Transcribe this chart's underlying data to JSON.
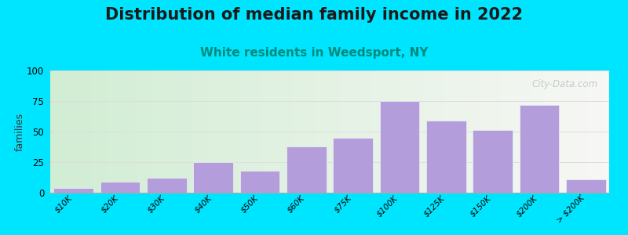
{
  "title": "Distribution of median family income in 2022",
  "subtitle": "White residents in Weedsport, NY",
  "ylabel": "families",
  "categories": [
    "$10K",
    "$20K",
    "$30K",
    "$40K",
    "$50K",
    "$60K",
    "$75K",
    "$100K",
    "$125K",
    "$150K",
    "$200K",
    "> $200K"
  ],
  "values": [
    4,
    9,
    12,
    25,
    18,
    38,
    45,
    75,
    59,
    51,
    72,
    11
  ],
  "bar_color": "#b39ddb",
  "bar_edge_color": "#e8e8f0",
  "background_outer": "#00e5ff",
  "ylim": [
    0,
    100
  ],
  "yticks": [
    0,
    25,
    50,
    75,
    100
  ],
  "title_fontsize": 15,
  "subtitle_fontsize": 11,
  "subtitle_color": "#00897b",
  "ylabel_fontsize": 9,
  "watermark": "City-Data.com",
  "grid_color": "#dddddd",
  "bg_left_color": "#c8e6c9",
  "bg_right_color": "#f5f5f0"
}
